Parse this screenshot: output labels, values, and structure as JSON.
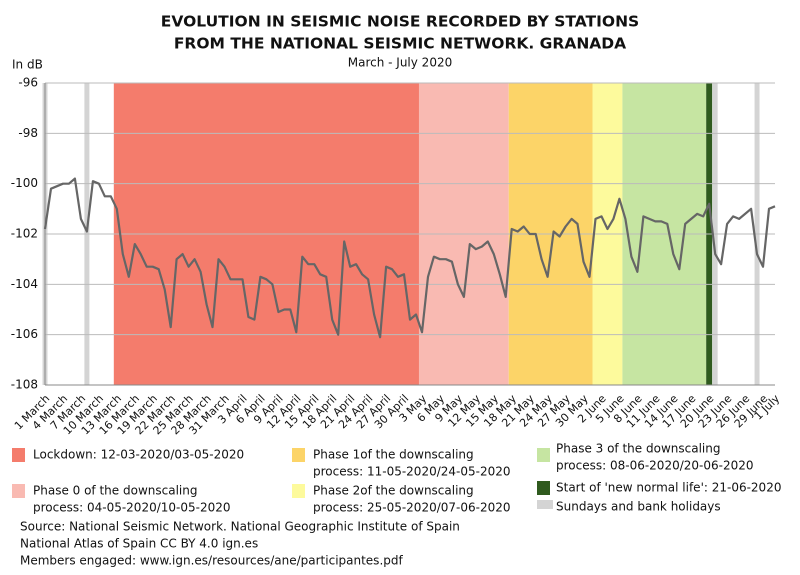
{
  "chart_data": {
    "type": "line",
    "title": [
      "EVOLUTION IN SEISMIC NOISE RECORDED BY STATIONS",
      "FROM THE NATIONAL SEISMIC NETWORK. GRANADA"
    ],
    "subtitle": "March - July 2020",
    "y_label": "In dB",
    "ylim": [
      -108,
      -96
    ],
    "yticks": [
      -96,
      -98,
      -100,
      -102,
      -104,
      -106,
      -108
    ],
    "grid": true,
    "categories": [
      "1 March",
      null,
      null,
      "4 March",
      null,
      null,
      "7 March",
      null,
      null,
      "10 March",
      null,
      null,
      "13 March",
      null,
      null,
      "16 March",
      null,
      null,
      "19 March",
      null,
      null,
      "22 March",
      null,
      null,
      "25 March",
      null,
      null,
      "28 March",
      null,
      null,
      "31 March",
      null,
      null,
      "3 April",
      null,
      null,
      "6 April",
      null,
      null,
      "9 April",
      null,
      null,
      "12 April",
      null,
      null,
      "15 April",
      null,
      null,
      "18 April",
      null,
      null,
      "21 April",
      null,
      null,
      "24 April",
      null,
      null,
      "27 April",
      null,
      null,
      "30 April",
      null,
      null,
      "3 May",
      null,
      null,
      "6 May",
      null,
      null,
      "9 May",
      null,
      null,
      "12 May",
      null,
      null,
      "15 May",
      null,
      null,
      "18 May",
      null,
      null,
      "21 May",
      null,
      null,
      "24 May",
      null,
      null,
      "27 May",
      null,
      null,
      "30 May",
      null,
      null,
      "2 June",
      null,
      null,
      "5 June",
      null,
      null,
      "8 June",
      null,
      null,
      "11 June",
      null,
      null,
      "14 June",
      null,
      null,
      "17 June",
      null,
      null,
      "20 June",
      null,
      null,
      "23 June",
      null,
      null,
      "26 June",
      null,
      null,
      "29 June",
      null,
      "1 July"
    ],
    "series": [
      {
        "color": "#666666",
        "values": [
          -101.8,
          -100.2,
          -100.1,
          -100,
          -100,
          -99.8,
          -101.4,
          -101.9,
          -99.9,
          -100.0,
          -100.5,
          -100.5,
          -101.0,
          -102.8,
          -103.7,
          -102.4,
          -102.8,
          -103.3,
          -103.3,
          -103.4,
          -104.2,
          -105.7,
          -103.0,
          -102.8,
          -103.3,
          -103.0,
          -103.5,
          -104.8,
          -105.7,
          -103.0,
          -103.3,
          -103.8,
          -103.8,
          -103.8,
          -105.3,
          -105.4,
          -103.7,
          -103.8,
          -104.0,
          -105.1,
          -105.0,
          -105.0,
          -105.9,
          -102.9,
          -103.2,
          -103.2,
          -103.6,
          -103.7,
          -105.4,
          -106.0,
          -102.3,
          -103.3,
          -103.2,
          -103.6,
          -103.8,
          -105.2,
          -106.1,
          -103.3,
          -103.4,
          -103.7,
          -103.6,
          -105.4,
          -105.2,
          -105.9,
          -103.7,
          -102.9,
          -103.0,
          -103.0,
          -103.1,
          -104.0,
          -104.5,
          -102.4,
          -102.6,
          -102.5,
          -102.3,
          -102.8,
          -103.6,
          -104.5,
          -101.8,
          -101.9,
          -101.7,
          -102.0,
          -102.0,
          -103.0,
          -103.7,
          -101.9,
          -102.1,
          -101.7,
          -101.4,
          -101.6,
          -103.1,
          -103.7,
          -101.4,
          -101.3,
          -101.8,
          -101.4,
          -100.6,
          -101.4,
          -102.9,
          -103.5,
          -101.3,
          -101.4,
          -101.5,
          -101.5,
          -101.6,
          -102.8,
          -103.4,
          -101.6,
          -101.4,
          -101.2,
          -101.3,
          -100.8,
          -102.8,
          -103.2,
          -101.6,
          -101.3,
          -101.4,
          -101.2,
          -101.0,
          -102.8,
          -103.3,
          -101.0,
          -100.9
        ]
      }
    ],
    "legend": [
      {
        "label": [
          "Lockdown: 12-03-2020/03-05-2020"
        ],
        "color": "#f47c6c"
      },
      {
        "label": [
          "Phase 0 of the downscaling",
          "process: 04-05-2020/10-05-2020"
        ],
        "color": "#f9bab2"
      },
      {
        "label": [
          "Phase 1of the downscaling",
          "process: 11-05-2020/24-05-2020"
        ],
        "color": "#fcd468"
      },
      {
        "label": [
          "Phase 2of the downscaling",
          "process: 25-05-2020/07-06-2020"
        ],
        "color": "#fdfa9c"
      },
      {
        "label": [
          "Phase 3 of the downscaling",
          "process: 08-06-2020/20-06-2020"
        ],
        "color": "#c6e5a2"
      },
      {
        "label": [
          "Start of 'new normal life': 21-06-2020"
        ],
        "color": "#2f5a1e"
      },
      {
        "label": [
          "Sundays and bank holidays"
        ],
        "color": "#d4d4d4"
      }
    ],
    "periods": [
      {
        "from": 12,
        "to": 62
      },
      {
        "from": 63,
        "to": 77
      },
      {
        "from": 78,
        "to": 91
      },
      {
        "from": 92,
        "to": 96
      },
      {
        "from": 97,
        "to": 110
      },
      {
        "from": 111,
        "to": 111
      }
    ],
    "holidays": [
      0,
      7,
      14,
      21,
      28,
      35,
      42,
      49,
      56,
      63,
      70,
      77,
      84,
      91,
      98,
      105,
      112,
      119
    ],
    "source": [
      "Source: National Seismic Network. National Geographic Institute of Spain",
      "National Atlas of Spain CC BY 4.0 ign.es",
      "Members engaged: www.ign.es/resources/ane/participantes.pdf"
    ]
  }
}
